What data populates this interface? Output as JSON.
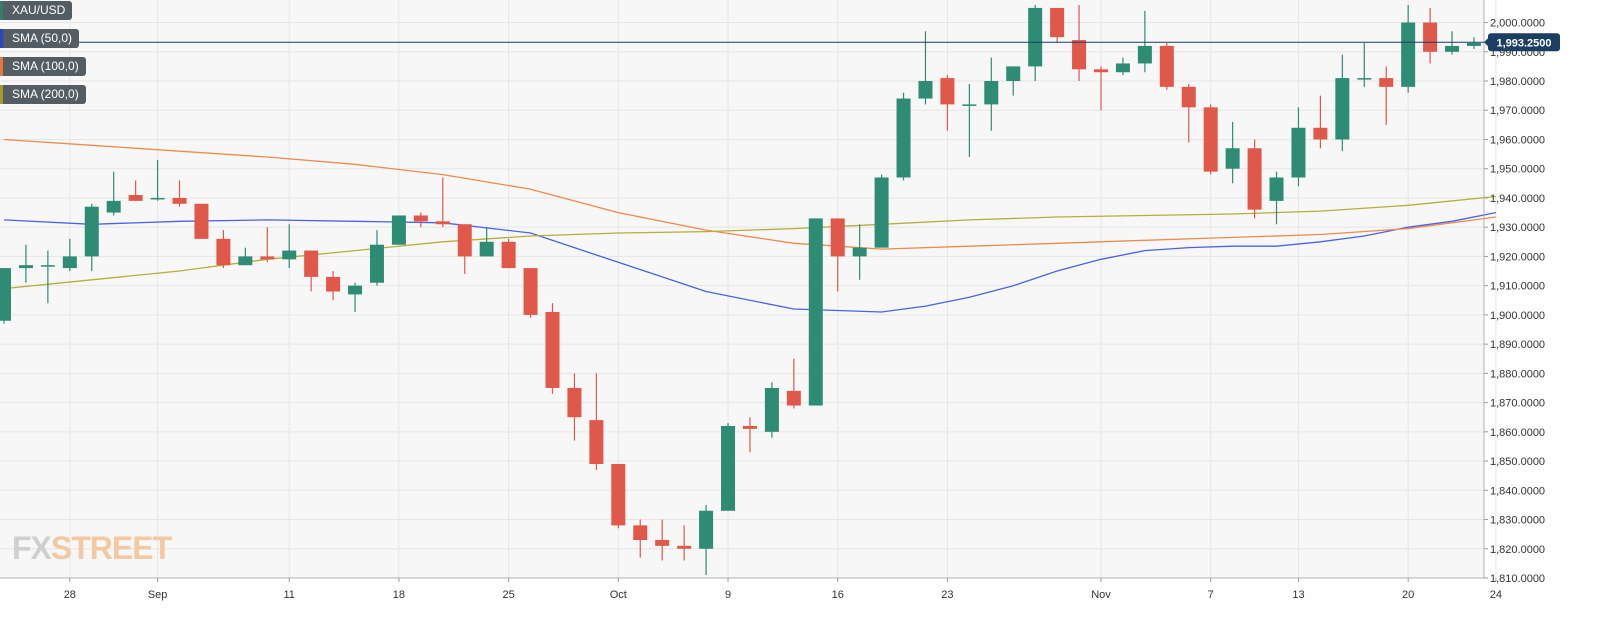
{
  "legend": [
    {
      "label": "XAU/USD",
      "color": "#3a7a6a"
    },
    {
      "label": "SMA (50,0)",
      "color": "#2b46c8"
    },
    {
      "label": "SMA (100,0)",
      "color": "#e8763a"
    },
    {
      "label": "SMA (200,0)",
      "color": "#a89a2a"
    }
  ],
  "logo": {
    "part1": "FX",
    "part2": "STREET"
  },
  "colors": {
    "bull": "#2e8b74",
    "bear": "#e0584a",
    "sma50": "#4a62e8",
    "sma100": "#ef8a4c",
    "sma200": "#b5ad3c",
    "current_line": "#1c3e63",
    "grid": "#e6e6e6"
  },
  "chart_data": {
    "type": "candlestick",
    "symbol": "XAU/USD",
    "ylim": [
      1810,
      2006
    ],
    "yticks": [
      1810,
      1820,
      1830,
      1840,
      1850,
      1860,
      1870,
      1880,
      1890,
      1900,
      1910,
      1920,
      1930,
      1940,
      1950,
      1960,
      1970,
      1980,
      1990,
      2000
    ],
    "ytick_labels": [
      "1,810.0000",
      "1,820.0000",
      "1,830.0000",
      "1,840.0000",
      "1,850.0000",
      "1,860.0000",
      "1,870.0000",
      "1,880.0000",
      "1,890.0000",
      "1,900.0000",
      "1,910.0000",
      "1,920.0000",
      "1,930.0000",
      "1,940.0000",
      "1,950.0000",
      "1,960.0000",
      "1,970.0000",
      "1,980.0000",
      "1,990.0000",
      "2,000.0000"
    ],
    "xtick_labels": [
      {
        "idx": 3,
        "label": "28"
      },
      {
        "idx": 7,
        "label": "Sep"
      },
      {
        "idx": 13,
        "label": "11"
      },
      {
        "idx": 18,
        "label": "18"
      },
      {
        "idx": 23,
        "label": "25"
      },
      {
        "idx": 28,
        "label": "Oct"
      },
      {
        "idx": 33,
        "label": "9"
      },
      {
        "idx": 38,
        "label": "16"
      },
      {
        "idx": 43,
        "label": "23"
      },
      {
        "idx": 50,
        "label": "Nov"
      },
      {
        "idx": 55,
        "label": "7"
      },
      {
        "idx": 59,
        "label": "13"
      },
      {
        "idx": 64,
        "label": "20"
      },
      {
        "idx": 68,
        "label": "24"
      }
    ],
    "candles": [
      {
        "o": 1898,
        "h": 1916,
        "l": 1897,
        "c": 1916
      },
      {
        "o": 1916,
        "h": 1924,
        "l": 1911,
        "c": 1917
      },
      {
        "o": 1917,
        "h": 1922,
        "l": 1904,
        "c": 1917
      },
      {
        "o": 1916,
        "h": 1926,
        "l": 1915,
        "c": 1920
      },
      {
        "o": 1920,
        "h": 1938,
        "l": 1915,
        "c": 1937
      },
      {
        "o": 1935,
        "h": 1949,
        "l": 1934,
        "c": 1939
      },
      {
        "o": 1941,
        "h": 1946,
        "l": 1939,
        "c": 1939
      },
      {
        "o": 1940,
        "h": 1953,
        "l": 1939,
        "c": 1940
      },
      {
        "o": 1940,
        "h": 1946,
        "l": 1937,
        "c": 1938
      },
      {
        "o": 1938,
        "h": 1938,
        "l": 1926,
        "c": 1926
      },
      {
        "o": 1926,
        "h": 1929,
        "l": 1916,
        "c": 1917
      },
      {
        "o": 1917,
        "h": 1923,
        "l": 1917,
        "c": 1920
      },
      {
        "o": 1920,
        "h": 1930,
        "l": 1918,
        "c": 1919
      },
      {
        "o": 1919,
        "h": 1931,
        "l": 1916,
        "c": 1922
      },
      {
        "o": 1922,
        "h": 1922,
        "l": 1908,
        "c": 1913
      },
      {
        "o": 1913,
        "h": 1915,
        "l": 1905,
        "c": 1908
      },
      {
        "o": 1907,
        "h": 1911,
        "l": 1901,
        "c": 1910
      },
      {
        "o": 1911,
        "h": 1929,
        "l": 1910,
        "c": 1924
      },
      {
        "o": 1924,
        "h": 1934,
        "l": 1924,
        "c": 1934
      },
      {
        "o": 1934,
        "h": 1935,
        "l": 1930,
        "c": 1932
      },
      {
        "o": 1932,
        "h": 1947,
        "l": 1930,
        "c": 1931
      },
      {
        "o": 1931,
        "h": 1931,
        "l": 1914,
        "c": 1920
      },
      {
        "o": 1920,
        "h": 1930,
        "l": 1920,
        "c": 1925
      },
      {
        "o": 1925,
        "h": 1926,
        "l": 1916,
        "c": 1916
      },
      {
        "o": 1916,
        "h": 1916,
        "l": 1899,
        "c": 1900
      },
      {
        "o": 1901,
        "h": 1904,
        "l": 1873,
        "c": 1875
      },
      {
        "o": 1875,
        "h": 1880,
        "l": 1857,
        "c": 1865
      },
      {
        "o": 1864,
        "h": 1880,
        "l": 1847,
        "c": 1849
      },
      {
        "o": 1849,
        "h": 1849,
        "l": 1827,
        "c": 1828
      },
      {
        "o": 1828,
        "h": 1830,
        "l": 1817,
        "c": 1823
      },
      {
        "o": 1823,
        "h": 1830,
        "l": 1816,
        "c": 1821
      },
      {
        "o": 1821,
        "h": 1828,
        "l": 1816,
        "c": 1820
      },
      {
        "o": 1820,
        "h": 1835,
        "l": 1811,
        "c": 1833
      },
      {
        "o": 1833,
        "h": 1863,
        "l": 1833,
        "c": 1862
      },
      {
        "o": 1862,
        "h": 1865,
        "l": 1853,
        "c": 1861
      },
      {
        "o": 1860,
        "h": 1877,
        "l": 1858,
        "c": 1875
      },
      {
        "o": 1874,
        "h": 1885,
        "l": 1868,
        "c": 1869
      },
      {
        "o": 1869,
        "h": 1933,
        "l": 1869,
        "c": 1933
      },
      {
        "o": 1933,
        "h": 1933,
        "l": 1908,
        "c": 1920
      },
      {
        "o": 1920,
        "h": 1931,
        "l": 1912,
        "c": 1923
      },
      {
        "o": 1923,
        "h": 1948,
        "l": 1923,
        "c": 1947
      },
      {
        "o": 1947,
        "h": 1976,
        "l": 1946,
        "c": 1974
      },
      {
        "o": 1974,
        "h": 1997,
        "l": 1972,
        "c": 1980
      },
      {
        "o": 1981,
        "h": 1982,
        "l": 1963,
        "c": 1972
      },
      {
        "o": 1972,
        "h": 1979,
        "l": 1954,
        "c": 1972
      },
      {
        "o": 1972,
        "h": 1988,
        "l": 1963,
        "c": 1980
      },
      {
        "o": 1980,
        "h": 1985,
        "l": 1975,
        "c": 1985
      },
      {
        "o": 1985,
        "h": 2006,
        "l": 1980,
        "c": 2005
      },
      {
        "o": 2005,
        "h": 2005,
        "l": 1993,
        "c": 1995
      },
      {
        "o": 1994,
        "h": 2006,
        "l": 1980,
        "c": 1984
      },
      {
        "o": 1984,
        "h": 1985,
        "l": 1970,
        "c": 1983
      },
      {
        "o": 1983,
        "h": 1988,
        "l": 1982,
        "c": 1986
      },
      {
        "o": 1986,
        "h": 2004,
        "l": 1983,
        "c": 1992
      },
      {
        "o": 1992,
        "h": 1993,
        "l": 1977,
        "c": 1978
      },
      {
        "o": 1978,
        "h": 1979,
        "l": 1959,
        "c": 1971
      },
      {
        "o": 1971,
        "h": 1972,
        "l": 1948,
        "c": 1949
      },
      {
        "o": 1950,
        "h": 1966,
        "l": 1945,
        "c": 1957
      },
      {
        "o": 1957,
        "h": 1960,
        "l": 1933,
        "c": 1936
      },
      {
        "o": 1939,
        "h": 1949,
        "l": 1931,
        "c": 1947
      },
      {
        "o": 1947,
        "h": 1971,
        "l": 1944,
        "c": 1964
      },
      {
        "o": 1964,
        "h": 1975,
        "l": 1957,
        "c": 1960
      },
      {
        "o": 1960,
        "h": 1989,
        "l": 1956,
        "c": 1981
      },
      {
        "o": 1981,
        "h": 1993,
        "l": 1978,
        "c": 1981
      },
      {
        "o": 1981,
        "h": 1985,
        "l": 1965,
        "c": 1978
      },
      {
        "o": 1978,
        "h": 2006,
        "l": 1976,
        "c": 2000
      },
      {
        "o": 2000,
        "h": 2005,
        "l": 1986,
        "c": 1990
      },
      {
        "o": 1990,
        "h": 1997,
        "l": 1989,
        "c": 1992
      },
      {
        "o": 1992,
        "h": 1995,
        "l": 1991,
        "c": 1993
      }
    ],
    "sma": [
      {
        "name": "SMA (50,0)",
        "points": [
          [
            0,
            1932.5
          ],
          [
            4,
            1931
          ],
          [
            8,
            1932
          ],
          [
            12,
            1932.5
          ],
          [
            16,
            1932
          ],
          [
            20,
            1931.5
          ],
          [
            24,
            1928
          ],
          [
            28,
            1918
          ],
          [
            32,
            1908
          ],
          [
            36,
            1902
          ],
          [
            38,
            1901.5
          ],
          [
            40,
            1901
          ],
          [
            42,
            1903
          ],
          [
            44,
            1906
          ],
          [
            46,
            1910
          ],
          [
            48,
            1915
          ],
          [
            50,
            1919
          ],
          [
            52,
            1922
          ],
          [
            54,
            1923
          ],
          [
            56,
            1923.5
          ],
          [
            58,
            1923.5
          ],
          [
            60,
            1925
          ],
          [
            62,
            1927
          ],
          [
            64,
            1930
          ],
          [
            66,
            1932
          ],
          [
            68,
            1935
          ]
        ]
      },
      {
        "name": "SMA (100,0)",
        "points": [
          [
            0,
            1960
          ],
          [
            4,
            1958
          ],
          [
            8,
            1956
          ],
          [
            12,
            1954
          ],
          [
            16,
            1951.5
          ],
          [
            20,
            1948
          ],
          [
            24,
            1943
          ],
          [
            28,
            1935
          ],
          [
            32,
            1929
          ],
          [
            36,
            1924.5
          ],
          [
            38,
            1923.5
          ],
          [
            40,
            1922.5
          ],
          [
            44,
            1923.5
          ],
          [
            48,
            1924.5
          ],
          [
            52,
            1925.5
          ],
          [
            56,
            1926.5
          ],
          [
            60,
            1927.5
          ],
          [
            64,
            1929.5
          ],
          [
            68,
            1933.5
          ]
        ]
      },
      {
        "name": "SMA (200,0)",
        "points": [
          [
            0,
            1909
          ],
          [
            4,
            1912
          ],
          [
            8,
            1915
          ],
          [
            12,
            1919
          ],
          [
            16,
            1922
          ],
          [
            20,
            1925
          ],
          [
            24,
            1927
          ],
          [
            28,
            1928
          ],
          [
            32,
            1928.5
          ],
          [
            36,
            1929.5
          ],
          [
            40,
            1931
          ],
          [
            44,
            1932.5
          ],
          [
            48,
            1933.5
          ],
          [
            52,
            1934
          ],
          [
            56,
            1934.5
          ],
          [
            60,
            1935.5
          ],
          [
            64,
            1937.5
          ],
          [
            68,
            1940.5
          ]
        ]
      }
    ],
    "current_price": 1993.25,
    "current_price_label": "1,993.2500"
  }
}
